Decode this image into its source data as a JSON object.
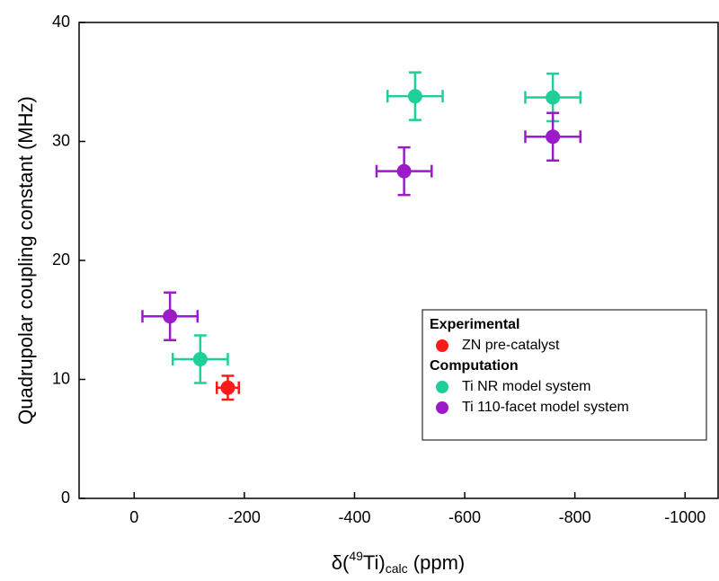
{
  "chart_data": {
    "type": "scatter",
    "x_label": {
      "prefix": "δ(",
      "sup": "49",
      "mid": "Ti)",
      "sub": "calc",
      "suffix": " (ppm)"
    },
    "y_label": "Quadrupolar coupling constant (MHz)",
    "xlim": [
      100,
      -1060
    ],
    "ylim": [
      0,
      40
    ],
    "xticks": [
      0,
      -200,
      -400,
      -600,
      -800,
      -1000
    ],
    "yticks": [
      0,
      10,
      20,
      30,
      40
    ],
    "series_groups": [
      {
        "title": "Experimental",
        "series": [
          {
            "name": "ZN pre-catalyst",
            "color": "#ff1a1a",
            "x": [
              -170
            ],
            "values": [
              9.3
            ],
            "xerr": [
              20
            ],
            "yerr": [
              1
            ]
          }
        ]
      },
      {
        "title": "Computation",
        "series": [
          {
            "name": "Ti NR model system",
            "color": "#1fcf9a",
            "x": [
              -120,
              -510,
              -760
            ],
            "values": [
              11.7,
              33.8,
              33.7
            ],
            "xerr": [
              50,
              50,
              50
            ],
            "yerr": [
              2,
              2,
              2
            ]
          },
          {
            "name": "Ti 110-facet model system",
            "color": "#9b1bc9",
            "x": [
              -65,
              -490,
              -760
            ],
            "values": [
              15.3,
              27.5,
              30.4
            ],
            "xerr": [
              50,
              50,
              50
            ],
            "yerr": [
              2,
              2,
              2
            ]
          }
        ]
      }
    ]
  }
}
